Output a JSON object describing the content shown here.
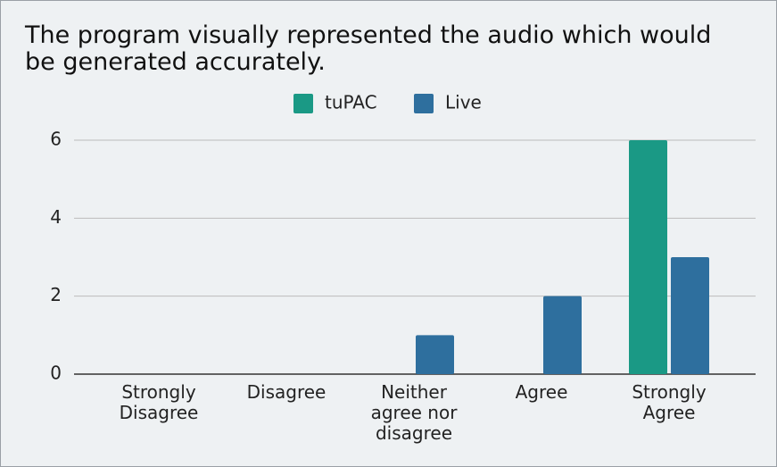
{
  "chart_data": {
    "type": "bar",
    "title": "The program visually represented the audio which would be generated accurately.",
    "categories": [
      "Strongly Disagree",
      "Disagree",
      "Neither agree nor disagree",
      "Agree",
      "Strongly Agree"
    ],
    "series": [
      {
        "name": "tuPAC",
        "color": "#1a9985",
        "values": [
          0,
          0,
          0,
          0,
          6
        ]
      },
      {
        "name": "Live",
        "color": "#2e6f9e",
        "values": [
          0,
          0,
          1,
          2,
          3
        ]
      }
    ],
    "ylim": [
      0,
      6
    ],
    "yticks": [
      0,
      2,
      4,
      6
    ],
    "grid": true,
    "legend": "top"
  }
}
